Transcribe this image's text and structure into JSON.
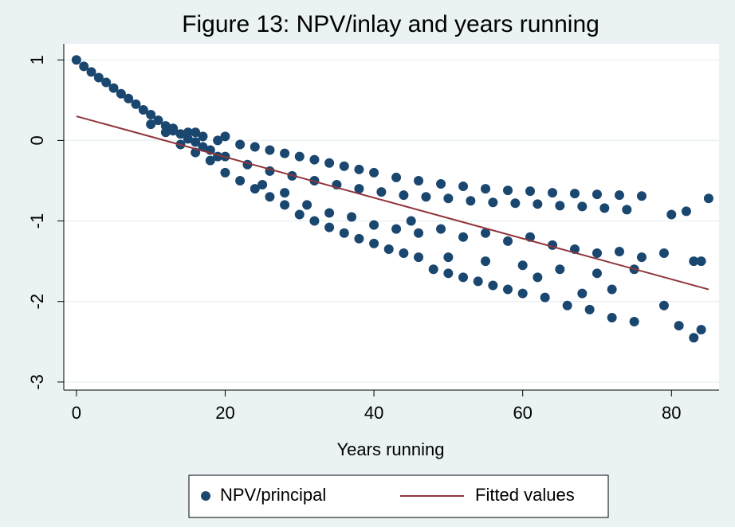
{
  "chart_data": {
    "type": "scatter",
    "title": "Figure 13: NPV/inlay and years running",
    "x_label": "Years running",
    "xlim": [
      -1.7,
      86.4
    ],
    "xticks": [
      0,
      20,
      40,
      60,
      80
    ],
    "ylim": [
      -3.1,
      1.2
    ],
    "yticks": [
      1,
      0,
      -1,
      -2,
      -3
    ],
    "grid": true,
    "legend": "bottom",
    "series": [
      {
        "name": "NPV/principal",
        "type": "scatter",
        "color": "#1a476f",
        "x": [
          0,
          1,
          2,
          3,
          4,
          5,
          6,
          7,
          8,
          9,
          10,
          11,
          12,
          13,
          14,
          15,
          16,
          17,
          18,
          10,
          12,
          13,
          14,
          15,
          16,
          17,
          18,
          19,
          19,
          16,
          20,
          22,
          24,
          26,
          28,
          30,
          32,
          34,
          36,
          38,
          40,
          43,
          46,
          49,
          52,
          55,
          58,
          61,
          64,
          67,
          70,
          73,
          76,
          85,
          20,
          23,
          26,
          29,
          32,
          35,
          38,
          41,
          44,
          47,
          50,
          53,
          56,
          59,
          62,
          65,
          68,
          71,
          74,
          80,
          82,
          20,
          22,
          24,
          26,
          28,
          30,
          32,
          34,
          36,
          38,
          40,
          42,
          44,
          46,
          48,
          50,
          52,
          54,
          56,
          58,
          60,
          63,
          66,
          69,
          72,
          75,
          79,
          81,
          83,
          84,
          25,
          28,
          31,
          34,
          37,
          40,
          43,
          46,
          49,
          52,
          55,
          58,
          61,
          64,
          67,
          70,
          73,
          76,
          79,
          83,
          84,
          45,
          50,
          55,
          60,
          65,
          70,
          75,
          68,
          72,
          62
        ],
        "values": [
          1,
          0.92,
          0.85,
          0.78,
          0.72,
          0.65,
          0.58,
          0.52,
          0.45,
          0.38,
          0.32,
          0.25,
          0.18,
          0.12,
          0.08,
          0.02,
          -0.02,
          -0.08,
          -0.12,
          0.2,
          0.1,
          0.15,
          -0.05,
          0.1,
          -0.15,
          0.05,
          -0.25,
          -0.2,
          0.0,
          0.1,
          0.05,
          -0.05,
          -0.08,
          -0.12,
          -0.16,
          -0.2,
          -0.24,
          -0.28,
          -0.32,
          -0.36,
          -0.4,
          -0.46,
          -0.5,
          -0.54,
          -0.57,
          -0.6,
          -0.62,
          -0.63,
          -0.65,
          -0.66,
          -0.67,
          -0.68,
          -0.69,
          -0.72,
          -0.2,
          -0.3,
          -0.38,
          -0.44,
          -0.5,
          -0.55,
          -0.6,
          -0.64,
          -0.68,
          -0.7,
          -0.72,
          -0.75,
          -0.77,
          -0.78,
          -0.79,
          -0.81,
          -0.82,
          -0.84,
          -0.86,
          -0.92,
          -0.88,
          -0.4,
          -0.5,
          -0.6,
          -0.7,
          -0.8,
          -0.92,
          -1.0,
          -1.08,
          -1.15,
          -1.22,
          -1.28,
          -1.35,
          -1.4,
          -1.45,
          -1.6,
          -1.65,
          -1.7,
          -1.75,
          -1.8,
          -1.85,
          -1.9,
          -1.95,
          -2.05,
          -2.1,
          -2.2,
          -2.25,
          -2.05,
          -2.3,
          -2.45,
          -2.35,
          -0.55,
          -0.65,
          -0.8,
          -0.9,
          -0.95,
          -1.05,
          -1.1,
          -1.15,
          -1.1,
          -1.2,
          -1.15,
          -1.25,
          -1.2,
          -1.3,
          -1.35,
          -1.4,
          -1.38,
          -1.45,
          -1.4,
          -1.5,
          -1.5,
          -1.0,
          -1.45,
          -1.5,
          -1.55,
          -1.6,
          -1.65,
          -1.6,
          -1.9,
          -1.85,
          -1.7
        ]
      },
      {
        "name": "Fitted values",
        "type": "line",
        "color": "#90353b",
        "x": [
          0,
          85
        ],
        "values": [
          0.3,
          -1.85
        ]
      }
    ]
  }
}
